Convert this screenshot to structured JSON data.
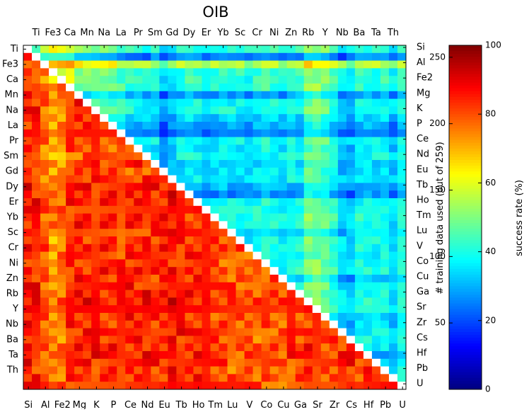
{
  "chart_data": {
    "type": "heatmap",
    "title": "OIB",
    "colorbar_left_label": "# training data used (out of 259)",
    "colorbar_right_label": "success rate (%)",
    "colorbar_left_ticks": [
      "50",
      "100",
      "150",
      "200",
      "250"
    ],
    "colorbar_right_ticks": [
      "0",
      "20",
      "40",
      "60",
      "80",
      "100"
    ],
    "colorbar_left_range": [
      0,
      259
    ],
    "colorbar_right_range": [
      0,
      100
    ],
    "colormap": "jet",
    "left_axis_labels": [
      "Ti",
      "Fe3",
      "Ca",
      "Mn",
      "Na",
      "La",
      "Pr",
      "Sm",
      "Gd",
      "Dy",
      "Er",
      "Yb",
      "Sc",
      "Cr",
      "Ni",
      "Zn",
      "Rb",
      "Y",
      "Nb",
      "Ba",
      "Ta",
      "Th"
    ],
    "top_axis_labels": [
      "Ti",
      "Fe3",
      "Ca",
      "Mn",
      "Na",
      "La",
      "Pr",
      "Sm",
      "Gd",
      "Dy",
      "Er",
      "Yb",
      "Sc",
      "Cr",
      "Ni",
      "Zn",
      "Rb",
      "Y",
      "Nb",
      "Ba",
      "Ta",
      "Th"
    ],
    "right_axis_labels": [
      "Si",
      "Al",
      "Fe2",
      "Mg",
      "K",
      "P",
      "Ce",
      "Nd",
      "Eu",
      "Tb",
      "Ho",
      "Tm",
      "Lu",
      "V",
      "Co",
      "Cu",
      "Ga",
      "Sr",
      "Zr",
      "Cs",
      "Hf",
      "Pb",
      "U"
    ],
    "bottom_axis_labels": [
      "Si",
      "Al",
      "Fe2",
      "Mg",
      "K",
      "P",
      "Ce",
      "Nd",
      "Eu",
      "Tb",
      "Ho",
      "Tm",
      "Lu",
      "V",
      "Co",
      "Cu",
      "Ga",
      "Sr",
      "Zr",
      "Cs",
      "Hf",
      "Pb",
      "U"
    ],
    "upper_triangle_row_levels_pct": [
      45,
      12,
      72,
      45,
      45,
      44,
      18,
      38,
      40,
      28,
      20,
      8,
      38,
      33,
      38,
      30,
      32,
      34,
      22,
      14,
      38,
      40,
      42,
      40,
      30,
      40,
      40,
      36,
      40,
      42,
      26,
      40,
      38,
      42,
      40,
      30,
      32,
      36,
      40,
      36,
      20,
      30,
      40,
      40,
      40
    ],
    "upper_triangle_col_levels_pct": [
      40,
      40,
      72,
      75,
      75,
      74,
      55,
      56,
      55,
      52,
      52,
      45,
      40,
      40,
      36,
      38,
      20,
      30,
      38,
      42,
      40,
      28,
      36,
      40,
      38,
      38,
      34,
      40,
      44,
      40,
      36,
      42,
      40,
      60,
      60,
      55,
      45,
      30,
      28,
      40,
      40,
      38,
      40,
      30,
      40
    ],
    "lower_triangle_row_levels_pct": [
      85,
      82,
      72,
      70,
      72,
      84,
      86,
      82,
      82,
      80,
      78,
      80,
      78,
      75,
      72,
      80,
      74,
      80,
      86,
      84,
      86,
      84,
      82,
      84,
      80,
      80,
      84,
      82,
      80,
      84,
      82,
      84,
      86,
      88,
      84,
      82,
      82,
      84,
      82,
      84,
      86,
      84,
      80,
      82,
      84
    ],
    "lower_triangle_col_levels_pct": [
      88,
      86,
      75,
      65,
      70,
      84,
      86,
      85,
      85,
      84,
      84,
      82,
      86,
      85,
      86,
      84,
      86,
      90,
      86,
      84,
      85,
      82,
      80,
      78,
      76,
      75,
      76,
      74,
      76,
      76,
      72,
      80,
      80,
      84,
      82,
      80,
      78,
      82,
      86,
      82,
      84,
      84,
      85,
      85,
      84
    ]
  }
}
